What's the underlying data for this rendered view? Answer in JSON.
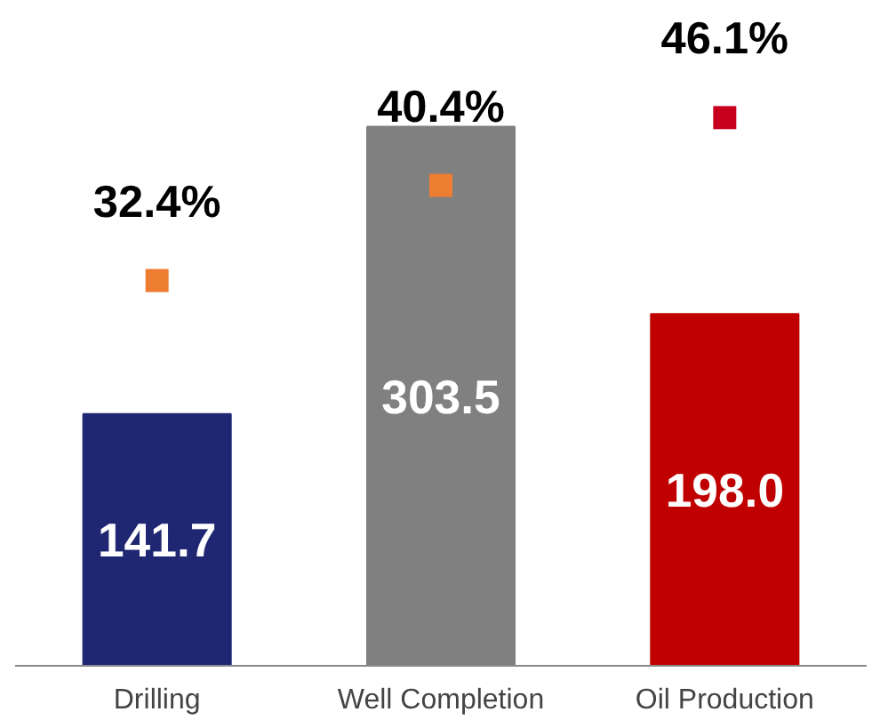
{
  "chart_data": {
    "type": "bar",
    "categories": [
      "Drilling",
      "Well Completion",
      "Oil Production"
    ],
    "series": [
      {
        "colors": [
          "#1f2773",
          "#808080",
          "#c00000"
        ],
        "values": [
          141.7,
          303.5,
          198.0
        ],
        "value_labels": [
          "141.7",
          "303.5",
          "198.0"
        ]
      },
      {
        "type": "scatter",
        "axis": "y2",
        "marker": "square",
        "colors": [
          "#ed7d31",
          "#ed7d31",
          "#c8001e"
        ],
        "values": [
          32.4,
          40.4,
          46.1
        ],
        "value_labels": [
          "32.4%",
          "40.4%",
          "46.1%"
        ]
      }
    ],
    "grid": false,
    "tick_labels": "x"
  }
}
